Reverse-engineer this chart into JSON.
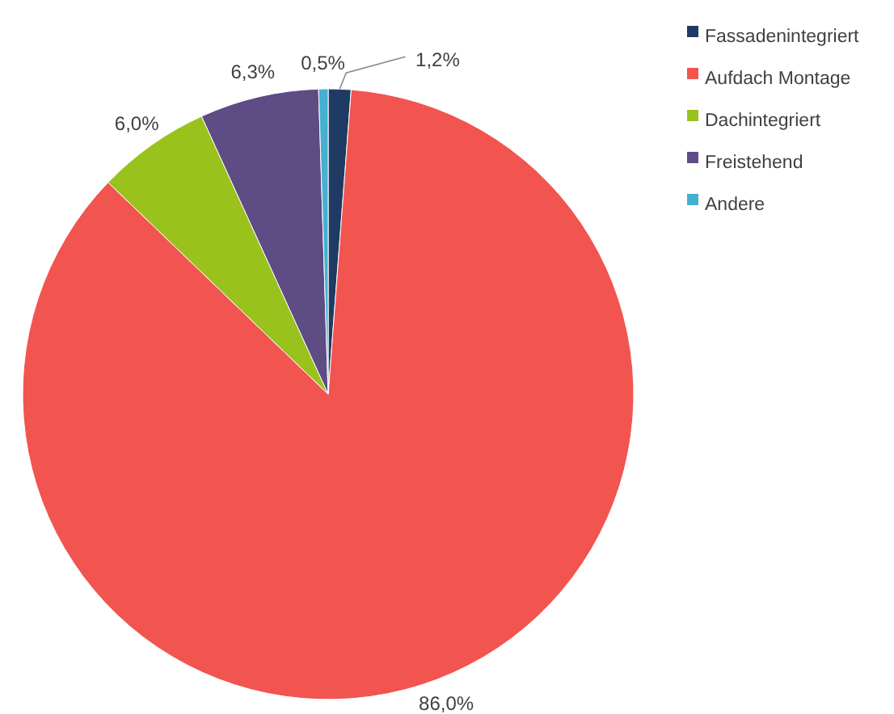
{
  "chart_data": {
    "type": "pie",
    "categories": [
      "Fassadenintegriert",
      "Aufdach Montage",
      "Dachintegriert",
      "Freistehend",
      "Andere"
    ],
    "values": [
      1.2,
      86.0,
      6.0,
      6.3,
      0.5
    ],
    "colors": [
      "#1f3b63",
      "#f25450",
      "#99c21c",
      "#5e4c85",
      "#45b0cf"
    ],
    "value_labels": [
      "1,2%",
      "86,0%",
      "6,0%",
      "6,3%",
      "0,5%"
    ],
    "legend": "right"
  }
}
